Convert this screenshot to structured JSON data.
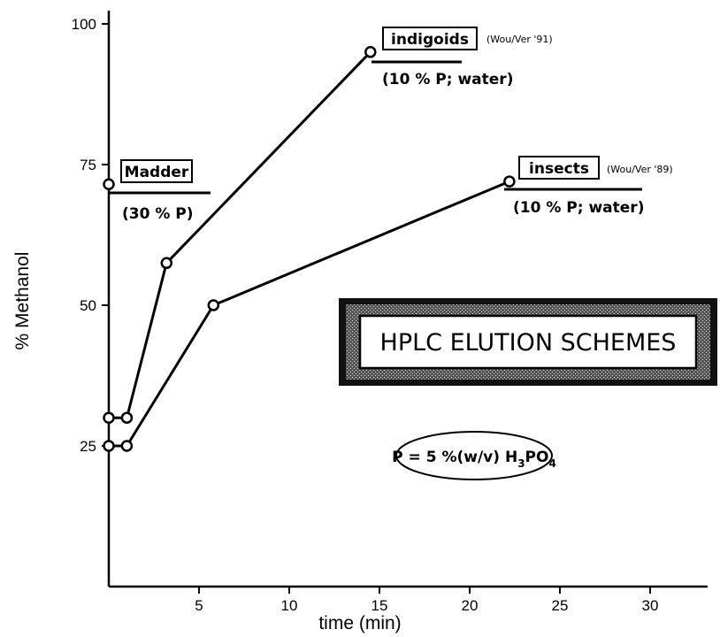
{
  "chart_data": {
    "type": "line",
    "xlabel": "time (min)",
    "ylabel": "% Methanol",
    "xlim": [
      0,
      32
    ],
    "ylim": [
      0,
      103
    ],
    "x_ticks": [
      5,
      10,
      15,
      20,
      25,
      30
    ],
    "y_ticks": [
      25,
      50,
      75,
      100
    ],
    "series": [
      {
        "name": "Madder",
        "points": [
          [
            0,
            71.5
          ]
        ]
      },
      {
        "name": "indigoids",
        "points": [
          [
            0,
            30
          ],
          [
            1,
            30
          ],
          [
            3.2,
            57.5
          ],
          [
            14.5,
            95
          ]
        ]
      },
      {
        "name": "insects",
        "points": [
          [
            0,
            25
          ],
          [
            1,
            25
          ],
          [
            5.8,
            50
          ],
          [
            22.2,
            72
          ]
        ]
      }
    ],
    "annotations": {
      "madder": {
        "label": "Madder",
        "sub": "(30 % P)"
      },
      "indigoids": {
        "label": "indigoids",
        "ref": "(Wou/Ver '91)",
        "sub": "(10 % P; water)"
      },
      "insects": {
        "label": "insects",
        "ref": "(Wou/Ver '89)",
        "sub": "(10 % P; water)"
      }
    },
    "banner": "HPLC ELUTION SCHEMES",
    "formula": {
      "prefix": "P = 5 %(w/v) H",
      "sub1": "3",
      "mid": "PO",
      "sub2": "4"
    }
  }
}
